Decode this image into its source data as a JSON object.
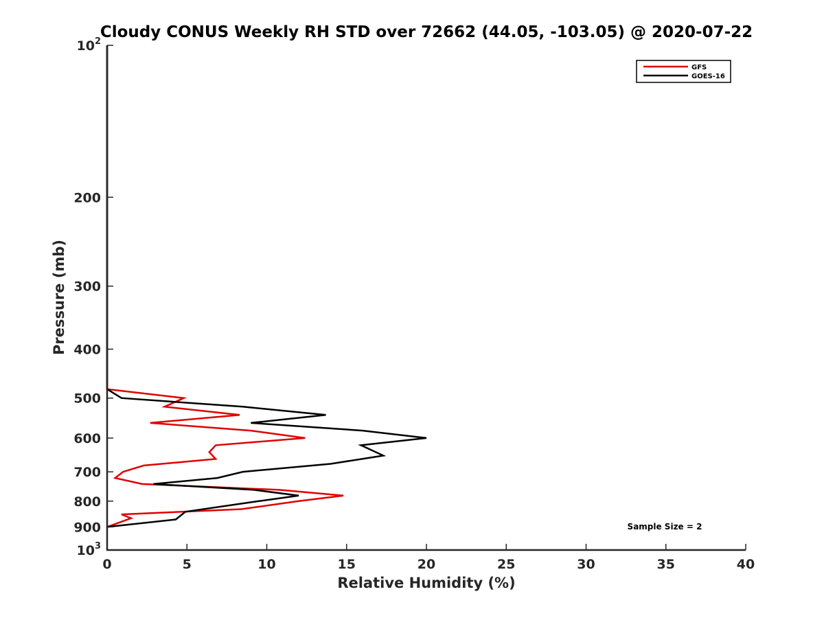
{
  "chart_data": {
    "type": "line",
    "title": "Cloudy CONUS Weekly RH STD over 72662 (44.05, -103.05) @ 2020-07-22",
    "xlabel": "Relative Humidity (%)",
    "ylabel": "Pressure (mb)",
    "xlim": [
      0,
      40
    ],
    "ylim": [
      100,
      1000
    ],
    "yscale": "log",
    "y_reversed": true,
    "x_ticks": [
      "0",
      "5",
      "10",
      "15",
      "20",
      "25",
      "30",
      "35",
      "40"
    ],
    "y_ticks": [
      {
        "value": 100,
        "base": "10",
        "exp": "2"
      },
      {
        "value": 200,
        "label": "200"
      },
      {
        "value": 300,
        "label": "300"
      },
      {
        "value": 400,
        "label": "400"
      },
      {
        "value": 500,
        "label": "500"
      },
      {
        "value": 600,
        "label": "600"
      },
      {
        "value": 700,
        "label": "700"
      },
      {
        "value": 800,
        "label": "800"
      },
      {
        "value": 900,
        "label": "900"
      },
      {
        "value": 1000,
        "base": "10",
        "exp": "3"
      }
    ],
    "legend_position": "top-right",
    "grid": false,
    "annotation": "Sample Size = 2",
    "series": [
      {
        "name": "GFS",
        "color": "#e00000",
        "points": [
          [
            0,
            100
          ],
          [
            0,
            480
          ],
          [
            4.8,
            500
          ],
          [
            3.6,
            520
          ],
          [
            8.3,
            540
          ],
          [
            2.7,
            560
          ],
          [
            9.0,
            580
          ],
          [
            12.4,
            600
          ],
          [
            6.8,
            620
          ],
          [
            6.4,
            640
          ],
          [
            6.8,
            660
          ],
          [
            2.3,
            680
          ],
          [
            1.0,
            700
          ],
          [
            0.5,
            720
          ],
          [
            2.2,
            740
          ],
          [
            10.8,
            760
          ],
          [
            14.8,
            780
          ],
          [
            12.0,
            800
          ],
          [
            8.4,
            830
          ],
          [
            0.9,
            850
          ],
          [
            1.5,
            865
          ],
          [
            0,
            900
          ]
        ]
      },
      {
        "name": "GOES-16",
        "color": "#000000",
        "points": [
          [
            0,
            100
          ],
          [
            0,
            480
          ],
          [
            0.9,
            500
          ],
          [
            8.5,
            520
          ],
          [
            13.7,
            540
          ],
          [
            9.0,
            560
          ],
          [
            16.0,
            580
          ],
          [
            20.0,
            600
          ],
          [
            15.9,
            620
          ],
          [
            17.3,
            650
          ],
          [
            14.0,
            675
          ],
          [
            8.5,
            700
          ],
          [
            6.9,
            720
          ],
          [
            2.9,
            740
          ],
          [
            9.2,
            760
          ],
          [
            12.0,
            780
          ],
          [
            9.5,
            800
          ],
          [
            4.9,
            840
          ],
          [
            4.3,
            870
          ],
          [
            0,
            900
          ]
        ]
      }
    ]
  }
}
